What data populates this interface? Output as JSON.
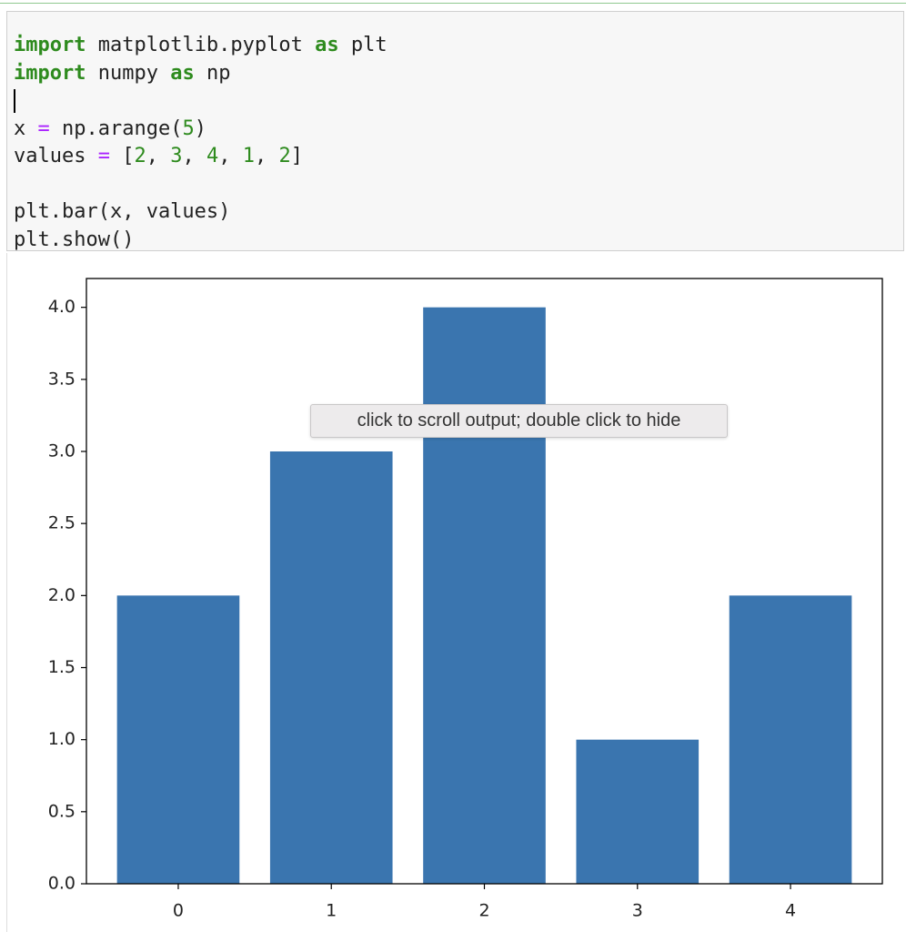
{
  "code": {
    "lines": [
      [
        {
          "text": "import",
          "color": "#2e8b1e",
          "weight": "bold"
        },
        {
          "text": " matplotlib.pyplot "
        },
        {
          "text": "as",
          "color": "#2e8b1e",
          "weight": "bold"
        },
        {
          "text": " plt"
        }
      ],
      [
        {
          "text": "import",
          "color": "#2e8b1e",
          "weight": "bold"
        },
        {
          "text": " numpy "
        },
        {
          "text": "as",
          "color": "#2e8b1e",
          "weight": "bold"
        },
        {
          "text": " np"
        }
      ],
      [],
      [
        {
          "text": "x "
        },
        {
          "text": "=",
          "color": "#aa22ff"
        },
        {
          "text": " np.arange("
        },
        {
          "text": "5",
          "color": "#2e8b1e"
        },
        {
          "text": ")"
        }
      ],
      [
        {
          "text": "values "
        },
        {
          "text": "=",
          "color": "#aa22ff"
        },
        {
          "text": " ["
        },
        {
          "text": "2",
          "color": "#2e8b1e"
        },
        {
          "text": ", "
        },
        {
          "text": "3",
          "color": "#2e8b1e"
        },
        {
          "text": ", "
        },
        {
          "text": "4",
          "color": "#2e8b1e"
        },
        {
          "text": ", "
        },
        {
          "text": "1",
          "color": "#2e8b1e"
        },
        {
          "text": ", "
        },
        {
          "text": "2",
          "color": "#2e8b1e"
        },
        {
          "text": "]"
        }
      ],
      [],
      [
        {
          "text": "plt.bar(x, values)"
        }
      ],
      [
        {
          "text": "plt.show()"
        }
      ]
    ]
  },
  "tooltip": {
    "text": "click to scroll output; double click to hide"
  },
  "chart_data": {
    "type": "bar",
    "x": [
      0,
      1,
      2,
      3,
      4
    ],
    "values": [
      2,
      3,
      4,
      1,
      2
    ],
    "color": "#3a75af",
    "width": 0.8,
    "xlim": [
      -0.6,
      4.6
    ],
    "xticks": [
      0,
      1,
      2,
      3,
      4
    ],
    "ylim": [
      0,
      4.2
    ],
    "yticks": [
      {
        "value": 0,
        "label": "0.0"
      },
      {
        "value": 0.5,
        "label": "0.5"
      },
      {
        "value": 1,
        "label": "1.0"
      },
      {
        "value": 1.5,
        "label": "1.5"
      },
      {
        "value": 2,
        "label": "2.0"
      },
      {
        "value": 2.5,
        "label": "2.5"
      },
      {
        "value": 3,
        "label": "3.0"
      },
      {
        "value": 3.5,
        "label": "3.5"
      },
      {
        "value": 4,
        "label": "4.0"
      }
    ]
  }
}
